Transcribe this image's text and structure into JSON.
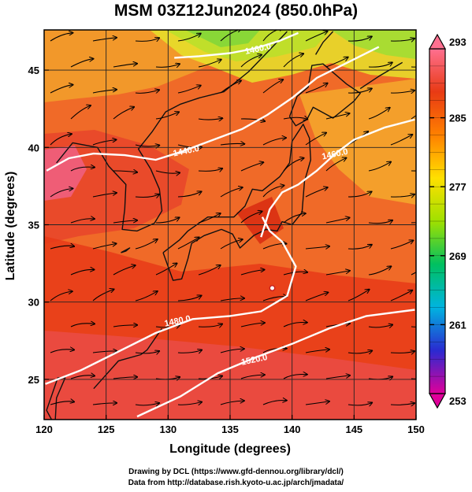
{
  "title": "MSM 03Z12Jun2024 (850.0hPa)",
  "credits": {
    "line1": "Drawing by DCL (https://www.gfd-dennou.org/library/dcl/)",
    "line2": "Data from http://database.rish.kyoto-u.ac.jp/arch/jmadata/"
  },
  "chart_data": {
    "type": "map",
    "xlabel": "Longitude (degrees)",
    "ylabel": "Latitude  (degrees)",
    "xlim": [
      120,
      150
    ],
    "ylim": [
      22.4,
      47.6
    ],
    "xticks": [
      120,
      125,
      130,
      135,
      140,
      145,
      150
    ],
    "yticks": [
      25,
      30,
      35,
      40,
      45
    ],
    "grid": true,
    "colorbar": {
      "min": 253,
      "max": 293,
      "labels": [
        293,
        285,
        277,
        269,
        261,
        253
      ],
      "colors": [
        "#e0009a",
        "#2a2ad0",
        "#00b4e0",
        "#00c060",
        "#a0e000",
        "#ffe000",
        "#ff8000",
        "#e83a14",
        "#ff7090"
      ]
    },
    "contours": [
      {
        "label": "1440.0",
        "points": [
          [
            120.2,
            38.5
          ],
          [
            122,
            39.3
          ],
          [
            124,
            39.6
          ],
          [
            126.5,
            39.5
          ],
          [
            129,
            39.2
          ],
          [
            131,
            39.7
          ],
          [
            133,
            40.3
          ],
          [
            136,
            41.2
          ],
          [
            138,
            42.1
          ],
          [
            140,
            43.2
          ],
          [
            142,
            44.5
          ],
          [
            145,
            45.7
          ],
          [
            147,
            46.5
          ]
        ]
      },
      {
        "label": "1460.0",
        "points": [
          [
            130.5,
            45.8
          ],
          [
            132.5,
            45.9
          ],
          [
            135,
            46.1
          ],
          [
            137,
            46.4
          ],
          [
            139,
            46.9
          ],
          [
            140.5,
            47.4
          ]
        ]
      },
      {
        "label": "1460.0",
        "points": [
          [
            137.5,
            34.2
          ],
          [
            138.2,
            36.0
          ],
          [
            139.2,
            37.1
          ],
          [
            140.5,
            37.6
          ],
          [
            142,
            38.5
          ],
          [
            143.5,
            39.6
          ],
          [
            145,
            40.5
          ],
          [
            147.5,
            41.3
          ],
          [
            149.9,
            41.8
          ]
        ]
      },
      {
        "label": "1480.0",
        "points": [
          [
            120.1,
            24.7
          ],
          [
            123,
            25.6
          ],
          [
            126,
            26.8
          ],
          [
            129,
            28.0
          ],
          [
            132,
            28.9
          ],
          [
            135,
            29.1
          ],
          [
            137.5,
            29.4
          ],
          [
            139.6,
            30.4
          ],
          [
            140.3,
            32.3
          ],
          [
            139.2,
            33.9
          ],
          [
            138.2,
            34.6
          ],
          [
            137.6,
            35.5
          ]
        ]
      },
      {
        "label": "1520.0",
        "points": [
          [
            127.5,
            22.6
          ],
          [
            131,
            23.9
          ],
          [
            134,
            25.4
          ],
          [
            137,
            26.4
          ],
          [
            140,
            27.3
          ],
          [
            143,
            28.3
          ],
          [
            146,
            29.1
          ],
          [
            149.9,
            29.5
          ]
        ]
      }
    ],
    "contour_labels": [
      {
        "text": "1440.0",
        "at": [
          131.5,
          39.6
        ]
      },
      {
        "text": "1460.0",
        "at": [
          137.3,
          46.2
        ]
      },
      {
        "text": "1460.0",
        "at": [
          143.5,
          39.4
        ]
      },
      {
        "text": "1480.0",
        "at": [
          130.8,
          28.6
        ]
      },
      {
        "text": "1520.0",
        "at": [
          137.0,
          26.1
        ]
      }
    ],
    "marker": {
      "at": [
        138.4,
        30.9
      ]
    }
  }
}
